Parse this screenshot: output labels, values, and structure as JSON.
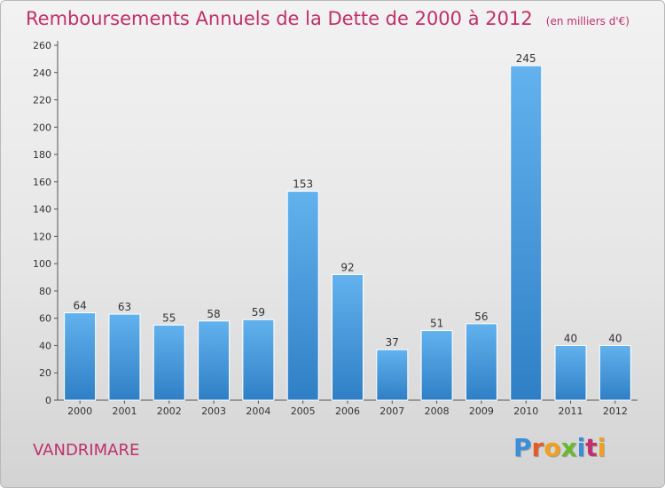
{
  "chart_data": {
    "type": "bar",
    "title": "Remboursements Annuels de la Dette de 2000 à 2012",
    "unit_note": "(en milliers d'€)",
    "categories": [
      "2000",
      "2001",
      "2002",
      "2003",
      "2004",
      "2005",
      "2006",
      "2007",
      "2008",
      "2009",
      "2010",
      "2011",
      "2012"
    ],
    "values": [
      64,
      63,
      55,
      58,
      59,
      153,
      92,
      37,
      51,
      56,
      245,
      40,
      40
    ],
    "ylim": [
      0,
      260
    ],
    "yticks": [
      0,
      20,
      40,
      60,
      80,
      100,
      120,
      140,
      160,
      180,
      200,
      220,
      240,
      260
    ],
    "grid": false,
    "bar_color": "#4a9fe0"
  },
  "footer": {
    "commune": "VANDRIMARE",
    "logo": "Proxiti"
  },
  "colors": {
    "title": "#c0306a",
    "logo_letters": [
      "#3a8fd8",
      "#e25c2a",
      "#f0a020",
      "#6ab82e",
      "#3a8fd8",
      "#c0306a",
      "#f0a020"
    ]
  }
}
